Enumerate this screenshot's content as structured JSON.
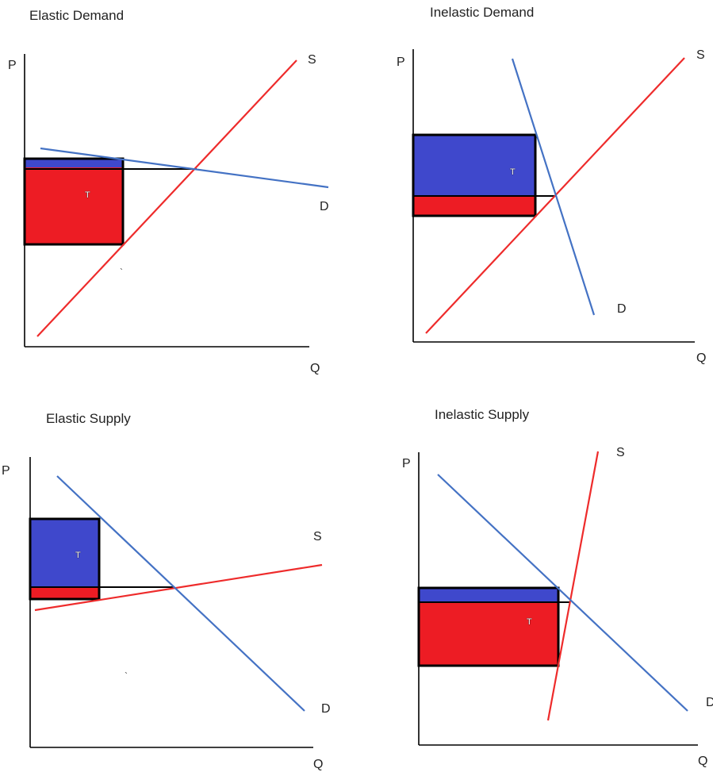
{
  "colors": {
    "demand": "#4472c4",
    "supply": "#ee2b2b",
    "consumer_burden": "#3f48cc",
    "producer_burden": "#ed1c24",
    "outline": "#000000"
  },
  "panels": [
    {
      "id": "elastic-demand",
      "title": "Elastic Demand",
      "y_axis_label": "P",
      "x_axis_label": "Q",
      "supply_label": "S",
      "demand_label": "D",
      "tax_label": "T"
    },
    {
      "id": "inelastic-demand",
      "title": "Inelastic Demand",
      "y_axis_label": "P",
      "x_axis_label": "Q",
      "supply_label": "S",
      "demand_label": "D",
      "tax_label": "T"
    },
    {
      "id": "elastic-supply",
      "title": "Elastic Supply",
      "y_axis_label": "P",
      "x_axis_label": "Q",
      "supply_label": "S",
      "demand_label": "D",
      "tax_label": "T"
    },
    {
      "id": "inelastic-supply",
      "title": "Inelastic Supply",
      "y_axis_label": "P",
      "x_axis_label": "Q",
      "supply_label": "S",
      "demand_label": "D",
      "tax_label": "T"
    }
  ]
}
